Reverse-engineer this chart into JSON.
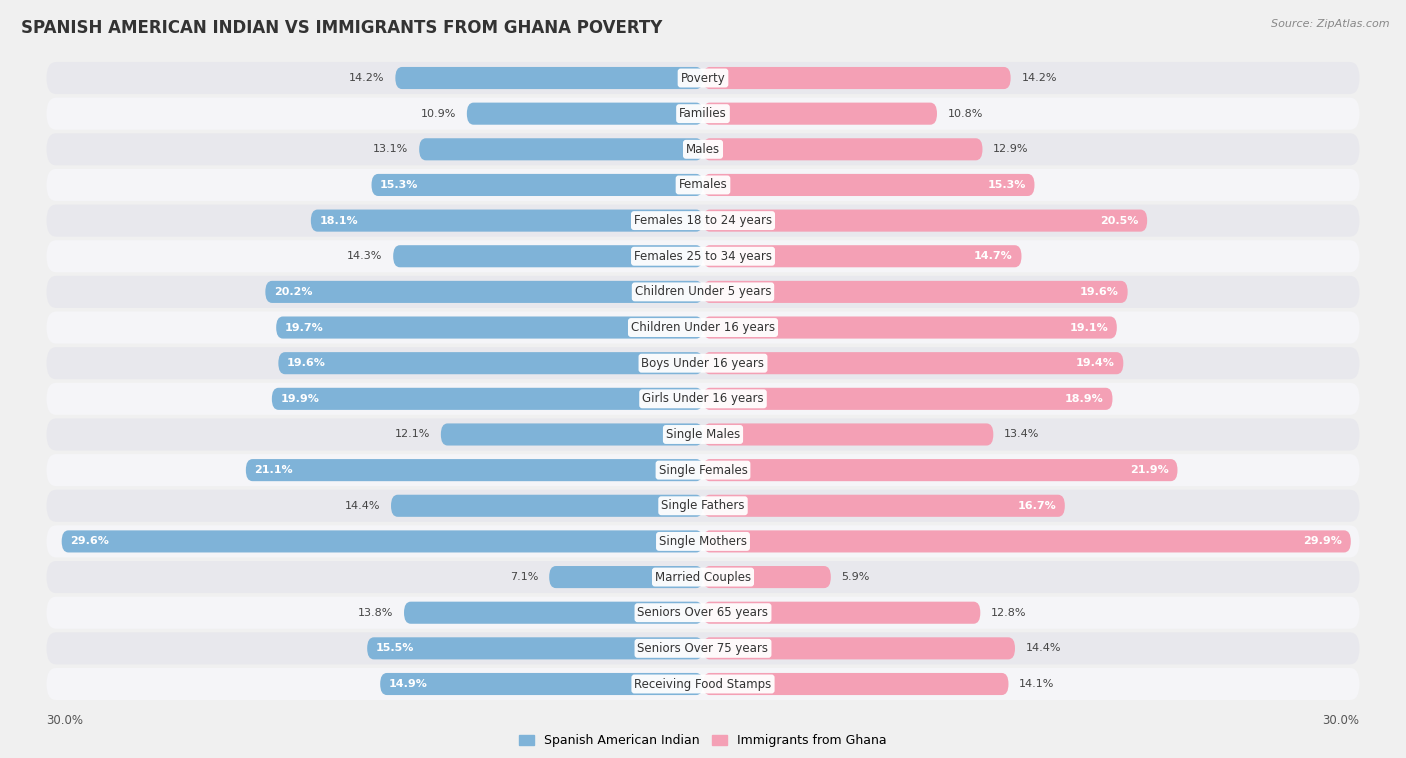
{
  "title": "SPANISH AMERICAN INDIAN VS IMMIGRANTS FROM GHANA POVERTY",
  "source": "Source: ZipAtlas.com",
  "categories": [
    "Poverty",
    "Families",
    "Males",
    "Females",
    "Females 18 to 24 years",
    "Females 25 to 34 years",
    "Children Under 5 years",
    "Children Under 16 years",
    "Boys Under 16 years",
    "Girls Under 16 years",
    "Single Males",
    "Single Females",
    "Single Fathers",
    "Single Mothers",
    "Married Couples",
    "Seniors Over 65 years",
    "Seniors Over 75 years",
    "Receiving Food Stamps"
  ],
  "left_values": [
    14.2,
    10.9,
    13.1,
    15.3,
    18.1,
    14.3,
    20.2,
    19.7,
    19.6,
    19.9,
    12.1,
    21.1,
    14.4,
    29.6,
    7.1,
    13.8,
    15.5,
    14.9
  ],
  "right_values": [
    14.2,
    10.8,
    12.9,
    15.3,
    20.5,
    14.7,
    19.6,
    19.1,
    19.4,
    18.9,
    13.4,
    21.9,
    16.7,
    29.9,
    5.9,
    12.8,
    14.4,
    14.1
  ],
  "left_color": "#7fb3d8",
  "right_color": "#f4a0b5",
  "background_color": "#f0f0f0",
  "row_color_odd": "#e8e8ed",
  "row_color_even": "#f5f5f8",
  "xmax": 30.0,
  "legend_left": "Spanish American Indian",
  "legend_right": "Immigrants from Ghana",
  "title_fontsize": 12,
  "label_fontsize": 8.5,
  "value_fontsize": 8,
  "white_threshold": 14.5
}
